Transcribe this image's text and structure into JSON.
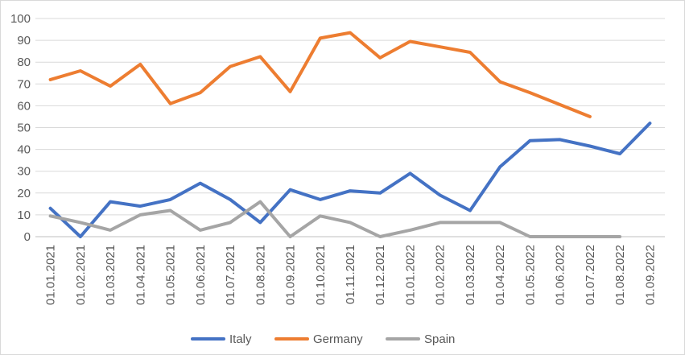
{
  "chart_data": {
    "type": "line",
    "title": "",
    "xlabel": "",
    "ylabel": "",
    "ylim": [
      0,
      100
    ],
    "yticks": [
      "0",
      "10",
      "20",
      "30",
      "40",
      "50",
      "60",
      "70",
      "80",
      "90",
      "100"
    ],
    "grid": true,
    "legend_position": "bottom",
    "categories": [
      "01.01.2021",
      "01.02.2021",
      "01.03.2021",
      "01.04.2021",
      "01.05.2021",
      "01.06.2021",
      "01.07.2021",
      "01.08.2021",
      "01.09.2021",
      "01.10.2021",
      "01.11.2021",
      "01.12.2021",
      "01.01.2022",
      "01.02.2022",
      "01.03.2022",
      "01.04.2022",
      "01.05.2022",
      "01.06.2022",
      "01.07.2022",
      "01.08.2022",
      "01.09.2022"
    ],
    "series": [
      {
        "name": "Italy",
        "color": "#4472c4",
        "values": [
          13,
          0,
          16,
          14,
          17,
          24.5,
          17,
          6.5,
          21.5,
          17,
          21,
          20,
          29,
          19,
          12,
          32,
          44,
          44.5,
          41.5,
          38,
          52
        ]
      },
      {
        "name": "Germany",
        "color": "#ed7d31",
        "values": [
          72,
          76,
          69,
          79,
          61,
          66,
          78,
          82.5,
          66.5,
          91,
          93.5,
          82,
          89.5,
          87,
          84.5,
          71,
          66,
          60.5,
          55,
          null,
          null
        ]
      },
      {
        "name": "Spain",
        "color": "#a5a5a5",
        "values": [
          9.5,
          6.5,
          3,
          10,
          12,
          3,
          6.5,
          16,
          0,
          9.5,
          6.5,
          0,
          3,
          6.5,
          6.5,
          6.5,
          0,
          0,
          0,
          0,
          null
        ]
      }
    ]
  }
}
